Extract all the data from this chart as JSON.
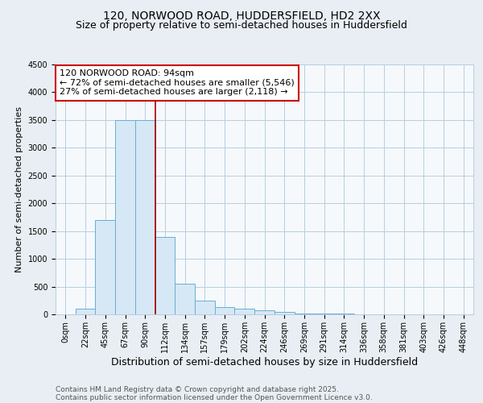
{
  "title_line1": "120, NORWOOD ROAD, HUDDERSFIELD, HD2 2XX",
  "title_line2": "Size of property relative to semi-detached houses in Huddersfield",
  "xlabel": "Distribution of semi-detached houses by size in Huddersfield",
  "ylabel": "Number of semi-detached properties",
  "bar_labels": [
    "0sqm",
    "22sqm",
    "45sqm",
    "67sqm",
    "90sqm",
    "112sqm",
    "134sqm",
    "157sqm",
    "179sqm",
    "202sqm",
    "224sqm",
    "246sqm",
    "269sqm",
    "291sqm",
    "314sqm",
    "336sqm",
    "358sqm",
    "381sqm",
    "403sqm",
    "426sqm",
    "448sqm"
  ],
  "bar_values": [
    0,
    100,
    1700,
    3500,
    3500,
    1400,
    550,
    250,
    125,
    100,
    75,
    50,
    20,
    15,
    10,
    5,
    5,
    3,
    3,
    2,
    2
  ],
  "bar_color": "#d6e8f5",
  "bar_edge_color": "#6aadd5",
  "red_line_x": 4.5,
  "red_line_color": "#aa0000",
  "annotation_text": "120 NORWOOD ROAD: 94sqm\n← 72% of semi-detached houses are smaller (5,546)\n27% of semi-detached houses are larger (2,118) →",
  "annotation_box_facecolor": "#ffffff",
  "annotation_box_edgecolor": "#cc0000",
  "ylim": [
    0,
    4500
  ],
  "yticks": [
    0,
    500,
    1000,
    1500,
    2000,
    2500,
    3000,
    3500,
    4000,
    4500
  ],
  "background_color": "#e8eef4",
  "plot_background_color": "#f5f9fc",
  "grid_color": "#b8cede",
  "title_fontsize": 10,
  "subtitle_fontsize": 9,
  "ylabel_fontsize": 8,
  "xlabel_fontsize": 9,
  "tick_fontsize": 7,
  "footer_fontsize": 6.5,
  "annotation_fontsize": 8,
  "footer_line1": "Contains HM Land Registry data © Crown copyright and database right 2025.",
  "footer_line2": "Contains public sector information licensed under the Open Government Licence v3.0."
}
